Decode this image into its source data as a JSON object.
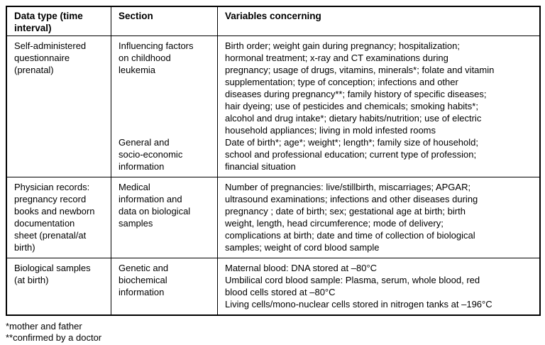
{
  "table": {
    "columns": [
      {
        "label": "Data type (time\ninterval)"
      },
      {
        "label": "Section"
      },
      {
        "label": "Variables concerning"
      }
    ],
    "rows": [
      {
        "data_type": "Self-administered\nquestionnaire\n(prenatal)",
        "sections": [
          {
            "section": "Influencing factors\non childhood\nleukemia",
            "variables": "Birth order; weight gain during pregnancy; hospitalization;\nhormonal treatment; x-ray and CT examinations during\npregnancy; usage of drugs, vitamins, minerals*; folate and vitamin\nsupplementation; type of conception; infections and other\ndiseases during pregnancy**; family history of specific diseases;\nhair dyeing; use of pesticides and chemicals; smoking habits*;\nalcohol and drug intake*; dietary habits/nutrition; use of electric\nhousehold appliances; living in mold infested rooms"
          },
          {
            "section": "General and\nsocio-economic\ninformation",
            "variables": "Date of birth*; age*; weight*; length*; family size of household;\nschool and professional education; current type of profession;\nfinancial situation"
          }
        ]
      },
      {
        "data_type": "Physician records:\npregnancy record\nbooks and newborn\ndocumentation\nsheet (prenatal/at\nbirth)",
        "sections": [
          {
            "section": "Medical\ninformation and\ndata on biological\nsamples",
            "variables": "Number of pregnancies: live/stillbirth, miscarriages; APGAR;\nultrasound examinations; infections and other diseases during\npregnancy ; date of birth; sex; gestational age at birth; birth\nweight, length, head circumference; mode of delivery;\ncomplications at birth; date and time of collection of biological\nsamples; weight of cord blood sample"
          }
        ]
      },
      {
        "data_type": "Biological samples\n(at birth)",
        "sections": [
          {
            "section": "Genetic and\nbiochemical\ninformation",
            "variables": "Maternal blood: DNA stored at –80°C\nUmbilical cord blood sample: Plasma, serum, whole blood, red\nblood cells stored at –80°C\nLiving cells/mono-nuclear cells stored in nitrogen tanks at –196°C"
          }
        ]
      }
    ]
  },
  "footnotes": [
    "*mother and father",
    "**confirmed by a doctor"
  ]
}
